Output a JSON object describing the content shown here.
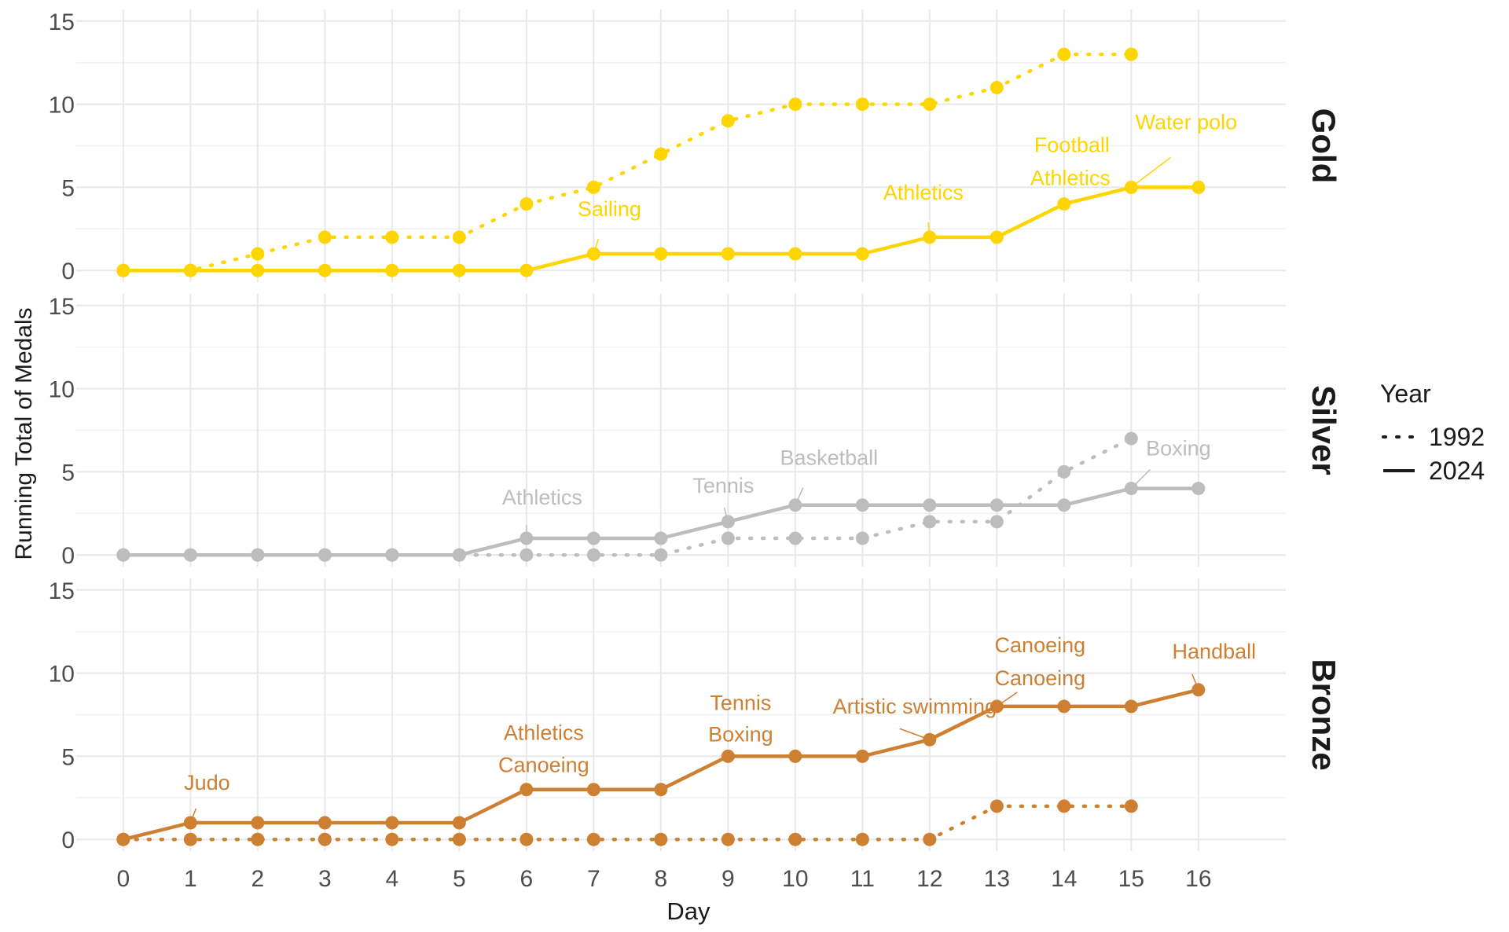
{
  "chart_data": {
    "type": "line",
    "xlabel": "Day",
    "ylabel": "Running Total of Medals",
    "x_ticks": [
      0,
      1,
      2,
      3,
      4,
      5,
      6,
      7,
      8,
      9,
      10,
      11,
      12,
      13,
      14,
      15,
      16
    ],
    "y_ticks": [
      0,
      5,
      10,
      15
    ],
    "ylim": [
      -0.7,
      15.7
    ],
    "xlim": [
      -0.7,
      17.3
    ],
    "grid": true,
    "legend": {
      "title": "Year",
      "position": "right",
      "items": [
        {
          "label": "1992",
          "linetype": "dotted"
        },
        {
          "label": "2024",
          "linetype": "solid"
        }
      ]
    },
    "facets": [
      {
        "strip": "Gold",
        "color": "#FFD500",
        "series": [
          {
            "year": "1992",
            "linetype": "dotted",
            "x": [
              0,
              1,
              2,
              3,
              4,
              5,
              6,
              7,
              8,
              9,
              10,
              11,
              12,
              13,
              14,
              15
            ],
            "y": [
              0,
              0,
              1,
              2,
              2,
              2,
              4,
              5,
              7,
              9,
              10,
              10,
              10,
              11,
              13,
              13
            ]
          },
          {
            "year": "2024",
            "linetype": "solid",
            "x": [
              0,
              1,
              2,
              3,
              4,
              5,
              6,
              7,
              8,
              9,
              10,
              11,
              12,
              13,
              14,
              15,
              16
            ],
            "y": [
              0,
              0,
              0,
              0,
              0,
              0,
              0,
              1,
              1,
              1,
              1,
              1,
              2,
              2,
              4,
              5,
              5
            ]
          }
        ],
        "annotations": [
          {
            "text": "Sailing",
            "x": 7,
            "y": 1
          },
          {
            "text": "Athletics",
            "x": 12,
            "y": 2
          },
          {
            "text": "Football",
            "x": 14,
            "y": 4
          },
          {
            "text": "Athletics",
            "x": 14,
            "y": 4
          },
          {
            "text": "Water polo",
            "x": 15,
            "y": 5
          }
        ]
      },
      {
        "strip": "Silver",
        "color": "#BDBDBD",
        "series": [
          {
            "year": "1992",
            "linetype": "dotted",
            "x": [
              0,
              1,
              2,
              3,
              4,
              5,
              6,
              7,
              8,
              9,
              10,
              11,
              12,
              13,
              14,
              15
            ],
            "y": [
              0,
              0,
              0,
              0,
              0,
              0,
              0,
              0,
              0,
              1,
              1,
              1,
              2,
              2,
              5,
              7
            ]
          },
          {
            "year": "2024",
            "linetype": "solid",
            "x": [
              0,
              1,
              2,
              3,
              4,
              5,
              6,
              7,
              8,
              9,
              10,
              11,
              12,
              13,
              14,
              15,
              16
            ],
            "y": [
              0,
              0,
              0,
              0,
              0,
              0,
              1,
              1,
              1,
              2,
              3,
              3,
              3,
              3,
              3,
              4,
              4
            ]
          }
        ],
        "annotations": [
          {
            "text": "Athletics",
            "x": 6,
            "y": 1
          },
          {
            "text": "Tennis",
            "x": 9,
            "y": 2
          },
          {
            "text": "Basketball",
            "x": 10,
            "y": 3
          },
          {
            "text": "Boxing",
            "x": 15,
            "y": 4
          }
        ]
      },
      {
        "strip": "Bronze",
        "color": "#CD7F32",
        "series": [
          {
            "year": "1992",
            "linetype": "dotted",
            "x": [
              0,
              1,
              2,
              3,
              4,
              5,
              6,
              7,
              8,
              9,
              10,
              11,
              12,
              13,
              14,
              15
            ],
            "y": [
              0,
              0,
              0,
              0,
              0,
              0,
              0,
              0,
              0,
              0,
              0,
              0,
              0,
              2,
              2,
              2
            ]
          },
          {
            "year": "2024",
            "linetype": "solid",
            "x": [
              0,
              1,
              2,
              3,
              4,
              5,
              6,
              7,
              8,
              9,
              10,
              11,
              12,
              13,
              14,
              15,
              16
            ],
            "y": [
              0,
              1,
              1,
              1,
              1,
              1,
              3,
              3,
              3,
              5,
              5,
              5,
              6,
              8,
              8,
              8,
              9
            ]
          }
        ],
        "annotations": [
          {
            "text": "Judo",
            "x": 1,
            "y": 1
          },
          {
            "text": "Athletics",
            "x": 6,
            "y": 3
          },
          {
            "text": "Canoeing",
            "x": 6,
            "y": 3
          },
          {
            "text": "Tennis",
            "x": 9,
            "y": 5
          },
          {
            "text": "Boxing",
            "x": 9,
            "y": 5
          },
          {
            "text": "Artistic swimming",
            "x": 12,
            "y": 6
          },
          {
            "text": "Canoeing",
            "x": 13,
            "y": 8
          },
          {
            "text": "Canoeing",
            "x": 13,
            "y": 8
          },
          {
            "text": "Handball",
            "x": 16,
            "y": 9
          }
        ]
      }
    ]
  }
}
